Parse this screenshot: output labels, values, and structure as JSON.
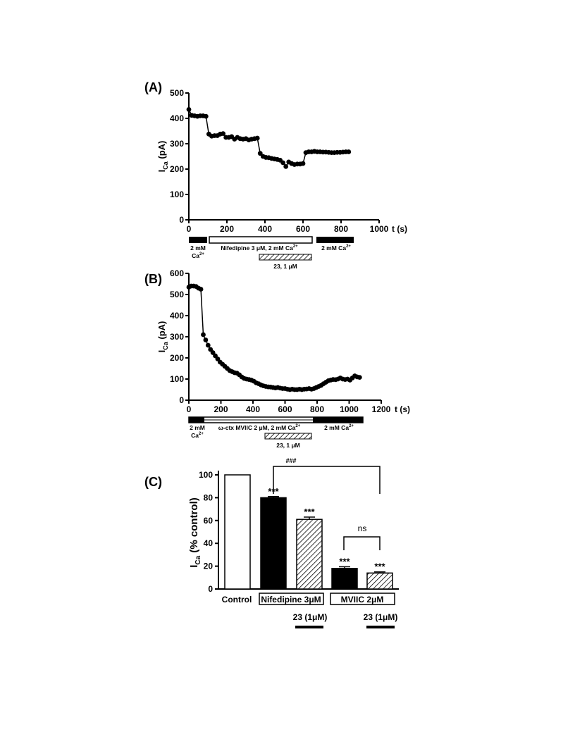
{
  "chart_data": [
    {
      "id": "A",
      "type": "scatter",
      "panel_label": "(A)",
      "ylabel_main": "I",
      "ylabel_sub": "Ca",
      "ylabel_unit": " (pA)",
      "xlabel": "t (s)",
      "xlim": [
        0,
        1000
      ],
      "ylim": [
        0,
        500
      ],
      "xticks": [
        0,
        200,
        400,
        600,
        800,
        1000
      ],
      "yticks": [
        0,
        100,
        200,
        300,
        400,
        500
      ],
      "series": [
        {
          "x": [
            0,
            15,
            30,
            45,
            60,
            75,
            90,
            105,
            120,
            135,
            150,
            165,
            180,
            195,
            210,
            225,
            240,
            255,
            270,
            285,
            300,
            315,
            330,
            345,
            360,
            375,
            390,
            405,
            420,
            435,
            450,
            465,
            480,
            495,
            510,
            525,
            540,
            555,
            570,
            585,
            600,
            615,
            630,
            645,
            660,
            675,
            690,
            705,
            720,
            735,
            750,
            765,
            780,
            795,
            810,
            825,
            840
          ],
          "y": [
            435,
            412,
            410,
            408,
            410,
            410,
            408,
            338,
            330,
            332,
            332,
            338,
            340,
            325,
            325,
            328,
            318,
            325,
            320,
            318,
            320,
            315,
            318,
            320,
            322,
            262,
            250,
            246,
            245,
            242,
            240,
            238,
            235,
            225,
            210,
            228,
            222,
            218,
            220,
            220,
            222,
            265,
            268,
            268,
            270,
            268,
            268,
            267,
            267,
            266,
            265,
            265,
            266,
            266,
            267,
            268,
            268
          ]
        }
      ],
      "annotations": {
        "ca_left_1": "2 mM",
        "ca_left_2": "Ca",
        "ca_left_sup": "2+",
        "treat": "Nifedipine 3 μM, 2 mM Ca",
        "treat_sup": "2+",
        "ca_right": "2 mM Ca",
        "ca_right_sup": "2+",
        "drug": "23, 1 μM"
      }
    },
    {
      "id": "B",
      "type": "scatter",
      "panel_label": "(B)",
      "ylabel_main": "I",
      "ylabel_sub": "Ca",
      "ylabel_unit": " (pA)",
      "xlabel": "t (s)",
      "xlim": [
        0,
        1200
      ],
      "ylim": [
        0,
        600
      ],
      "xticks": [
        0,
        200,
        400,
        600,
        800,
        1000,
        1200
      ],
      "yticks": [
        0,
        100,
        200,
        300,
        400,
        500,
        600
      ],
      "series": [
        {
          "x": [
            0,
            15,
            30,
            45,
            60,
            75,
            90,
            105,
            120,
            135,
            150,
            165,
            180,
            195,
            210,
            225,
            240,
            255,
            270,
            285,
            300,
            315,
            330,
            345,
            360,
            375,
            390,
            405,
            420,
            435,
            450,
            465,
            480,
            495,
            510,
            525,
            540,
            555,
            570,
            585,
            600,
            615,
            630,
            645,
            660,
            675,
            690,
            705,
            720,
            735,
            750,
            765,
            780,
            795,
            810,
            825,
            840,
            855,
            870,
            885,
            900,
            915,
            930,
            945,
            960,
            975,
            990,
            1005,
            1020,
            1035,
            1050,
            1065
          ],
          "y": [
            535,
            540,
            540,
            538,
            530,
            525,
            310,
            285,
            260,
            240,
            225,
            210,
            195,
            180,
            170,
            160,
            150,
            140,
            135,
            130,
            128,
            120,
            110,
            103,
            100,
            98,
            95,
            90,
            82,
            78,
            72,
            68,
            65,
            63,
            62,
            60,
            58,
            60,
            57,
            55,
            55,
            52,
            50,
            52,
            50,
            50,
            52,
            50,
            52,
            53,
            55,
            52,
            55,
            60,
            65,
            70,
            78,
            85,
            92,
            95,
            98,
            97,
            100,
            105,
            100,
            98,
            100,
            95,
            105,
            115,
            110,
            108
          ]
        }
      ],
      "annotations": {
        "ca_left_1": "2 mM",
        "ca_left_2": "Ca",
        "ca_left_sup": "2+",
        "treat": "ω-ctx MVIIC 2 μM, 2 mM Ca",
        "treat_sup": "2+",
        "ca_right": "2 mM Ca",
        "ca_right_sup": "2+",
        "drug": "23, 1 μM"
      }
    },
    {
      "id": "C",
      "type": "bar",
      "panel_label": "(C)",
      "ylabel_main": "I",
      "ylabel_sub": "Ca",
      "ylabel_unit": " (% control)",
      "ylim": [
        0,
        100
      ],
      "yticks": [
        0,
        20,
        40,
        60,
        80,
        100
      ],
      "bars": [
        {
          "value": 100,
          "error": 0,
          "fill": "white",
          "stars": ""
        },
        {
          "value": 80,
          "error": 1,
          "fill": "black",
          "stars": "***"
        },
        {
          "value": 61,
          "error": 2,
          "fill": "hatch",
          "stars": "***"
        },
        {
          "value": 18,
          "error": 1.5,
          "fill": "black",
          "stars": "***"
        },
        {
          "value": 14,
          "error": 1,
          "fill": "hatch",
          "stars": "***"
        }
      ],
      "group_labels": {
        "control": "Control",
        "nifedipine": "Nifedipine 3μM",
        "mviic": "MVIIC 2μM"
      },
      "drug_label": "23 (1μM)",
      "comparisons": [
        {
          "label": "###"
        },
        {
          "label": "ns"
        }
      ]
    }
  ]
}
